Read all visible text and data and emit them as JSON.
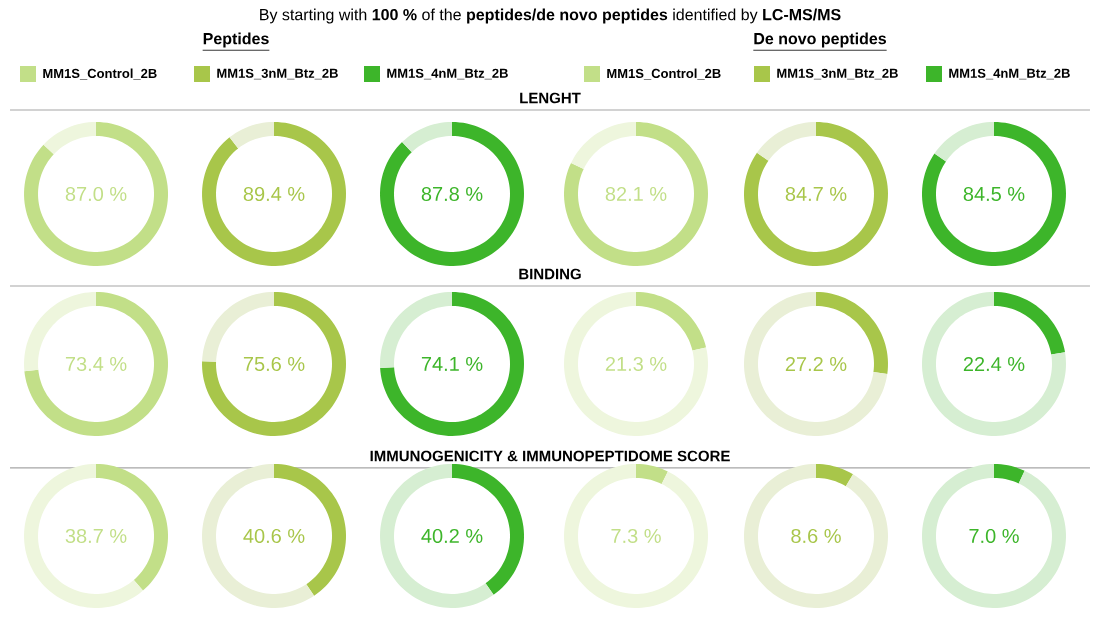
{
  "chart_data": [
    {
      "type": "other",
      "title": "By starting with **100 %** of the **peptides/de novo peptides** identified by **LC-MS/MS**",
      "annotations": [
        "Peptides",
        "De novo peptides",
        "LENGHT",
        "BINDING",
        "IMMUNOGENICITY & IMMUNOPEPTIDOME SCORE"
      ],
      "legend": "top",
      "series": [
        {
          "name": "MM1S_Control_2B",
          "color": "#c2df88"
        },
        {
          "name": "MM1S_3nM_Btz_2B",
          "color": "#a8c64a"
        },
        {
          "name": "MM1S_4nM_Btz_2B",
          "color": "#3db52a"
        },
        {
          "name": "MM1S_Control_2B",
          "color": "#c2df88"
        },
        {
          "name": "MM1S_3nM_Btz_2B",
          "color": "#a8c64a"
        },
        {
          "name": "MM1S_4nM_Btz_2B",
          "color": "#3db52a"
        }
      ]
    },
    {
      "type": "donut",
      "categories": [
        null,
        null
      ],
      "values": [
        87.0,
        13.0
      ],
      "colors": [
        "#c2df88",
        "#eef6dd"
      ],
      "annotations": [
        "87.0 %"
      ]
    },
    {
      "type": "donut",
      "categories": [
        null,
        null
      ],
      "values": [
        89.4,
        10.6
      ],
      "colors": [
        "#a8c64a",
        "#e9efd6"
      ],
      "annotations": [
        "89.4 %"
      ]
    },
    {
      "type": "donut",
      "categories": [
        null,
        null
      ],
      "values": [
        87.8,
        12.2
      ],
      "colors": [
        "#3db52a",
        "#d6eed2"
      ],
      "annotations": [
        "87.8 %"
      ]
    },
    {
      "type": "donut",
      "categories": [
        null,
        null
      ],
      "values": [
        82.1,
        17.9
      ],
      "colors": [
        "#c2df88",
        "#eef6dd"
      ],
      "annotations": [
        "82.1 %"
      ]
    },
    {
      "type": "donut",
      "categories": [
        null,
        null
      ],
      "values": [
        84.7,
        15.3
      ],
      "colors": [
        "#a8c64a",
        "#e9efd6"
      ],
      "annotations": [
        "84.7 %"
      ]
    },
    {
      "type": "donut",
      "categories": [
        null,
        null
      ],
      "values": [
        84.5,
        15.5
      ],
      "colors": [
        "#3db52a",
        "#d6eed2"
      ],
      "annotations": [
        "84.5 %"
      ]
    },
    {
      "type": "donut",
      "categories": [
        null,
        null
      ],
      "values": [
        73.4,
        26.6
      ],
      "colors": [
        "#c2df88",
        "#eef6dd"
      ],
      "annotations": [
        "73.4 %"
      ]
    },
    {
      "type": "donut",
      "categories": [
        null,
        null
      ],
      "values": [
        75.6,
        24.4
      ],
      "colors": [
        "#a8c64a",
        "#e9efd6"
      ],
      "annotations": [
        "75.6 %"
      ]
    },
    {
      "type": "donut",
      "categories": [
        null,
        null
      ],
      "values": [
        74.1,
        25.9
      ],
      "colors": [
        "#3db52a",
        "#d6eed2"
      ],
      "annotations": [
        "74.1 %"
      ]
    },
    {
      "type": "donut",
      "categories": [
        null,
        null
      ],
      "values": [
        21.3,
        78.7
      ],
      "colors": [
        "#c2df88",
        "#eef6dd"
      ],
      "annotations": [
        "21.3 %"
      ]
    },
    {
      "type": "donut",
      "categories": [
        null,
        null
      ],
      "values": [
        27.2,
        72.8
      ],
      "colors": [
        "#a8c64a",
        "#e9efd6"
      ],
      "annotations": [
        "27.2 %"
      ]
    },
    {
      "type": "donut",
      "categories": [
        null,
        null
      ],
      "values": [
        22.4,
        77.6
      ],
      "colors": [
        "#3db52a",
        "#d6eed2"
      ],
      "annotations": [
        "22.4 %"
      ]
    },
    {
      "type": "donut",
      "categories": [
        null,
        null
      ],
      "values": [
        38.7,
        61.3
      ],
      "colors": [
        "#c2df88",
        "#eef6dd"
      ],
      "annotations": [
        "38.7 %"
      ]
    },
    {
      "type": "donut",
      "categories": [
        null,
        null
      ],
      "values": [
        40.6,
        59.4
      ],
      "colors": [
        "#a8c64a",
        "#e9efd6"
      ],
      "annotations": [
        "40.6 %"
      ]
    },
    {
      "type": "donut",
      "categories": [
        null,
        null
      ],
      "values": [
        40.2,
        59.8
      ],
      "colors": [
        "#3db52a",
        "#d6eed2"
      ],
      "annotations": [
        "40.2 %"
      ]
    },
    {
      "type": "donut",
      "categories": [
        null,
        null
      ],
      "values": [
        7.3,
        92.7
      ],
      "colors": [
        "#c2df88",
        "#eef6dd"
      ],
      "annotations": [
        "7.3 %"
      ]
    },
    {
      "type": "donut",
      "categories": [
        null,
        null
      ],
      "values": [
        8.6,
        91.4
      ],
      "colors": [
        "#a8c64a",
        "#e9efd6"
      ],
      "annotations": [
        "8.6 %"
      ]
    },
    {
      "type": "donut",
      "categories": [
        null,
        null
      ],
      "values": [
        7.0,
        93.0
      ],
      "colors": [
        "#3db52a",
        "#d6eed2"
      ],
      "annotations": [
        "7.0 %"
      ]
    }
  ]
}
